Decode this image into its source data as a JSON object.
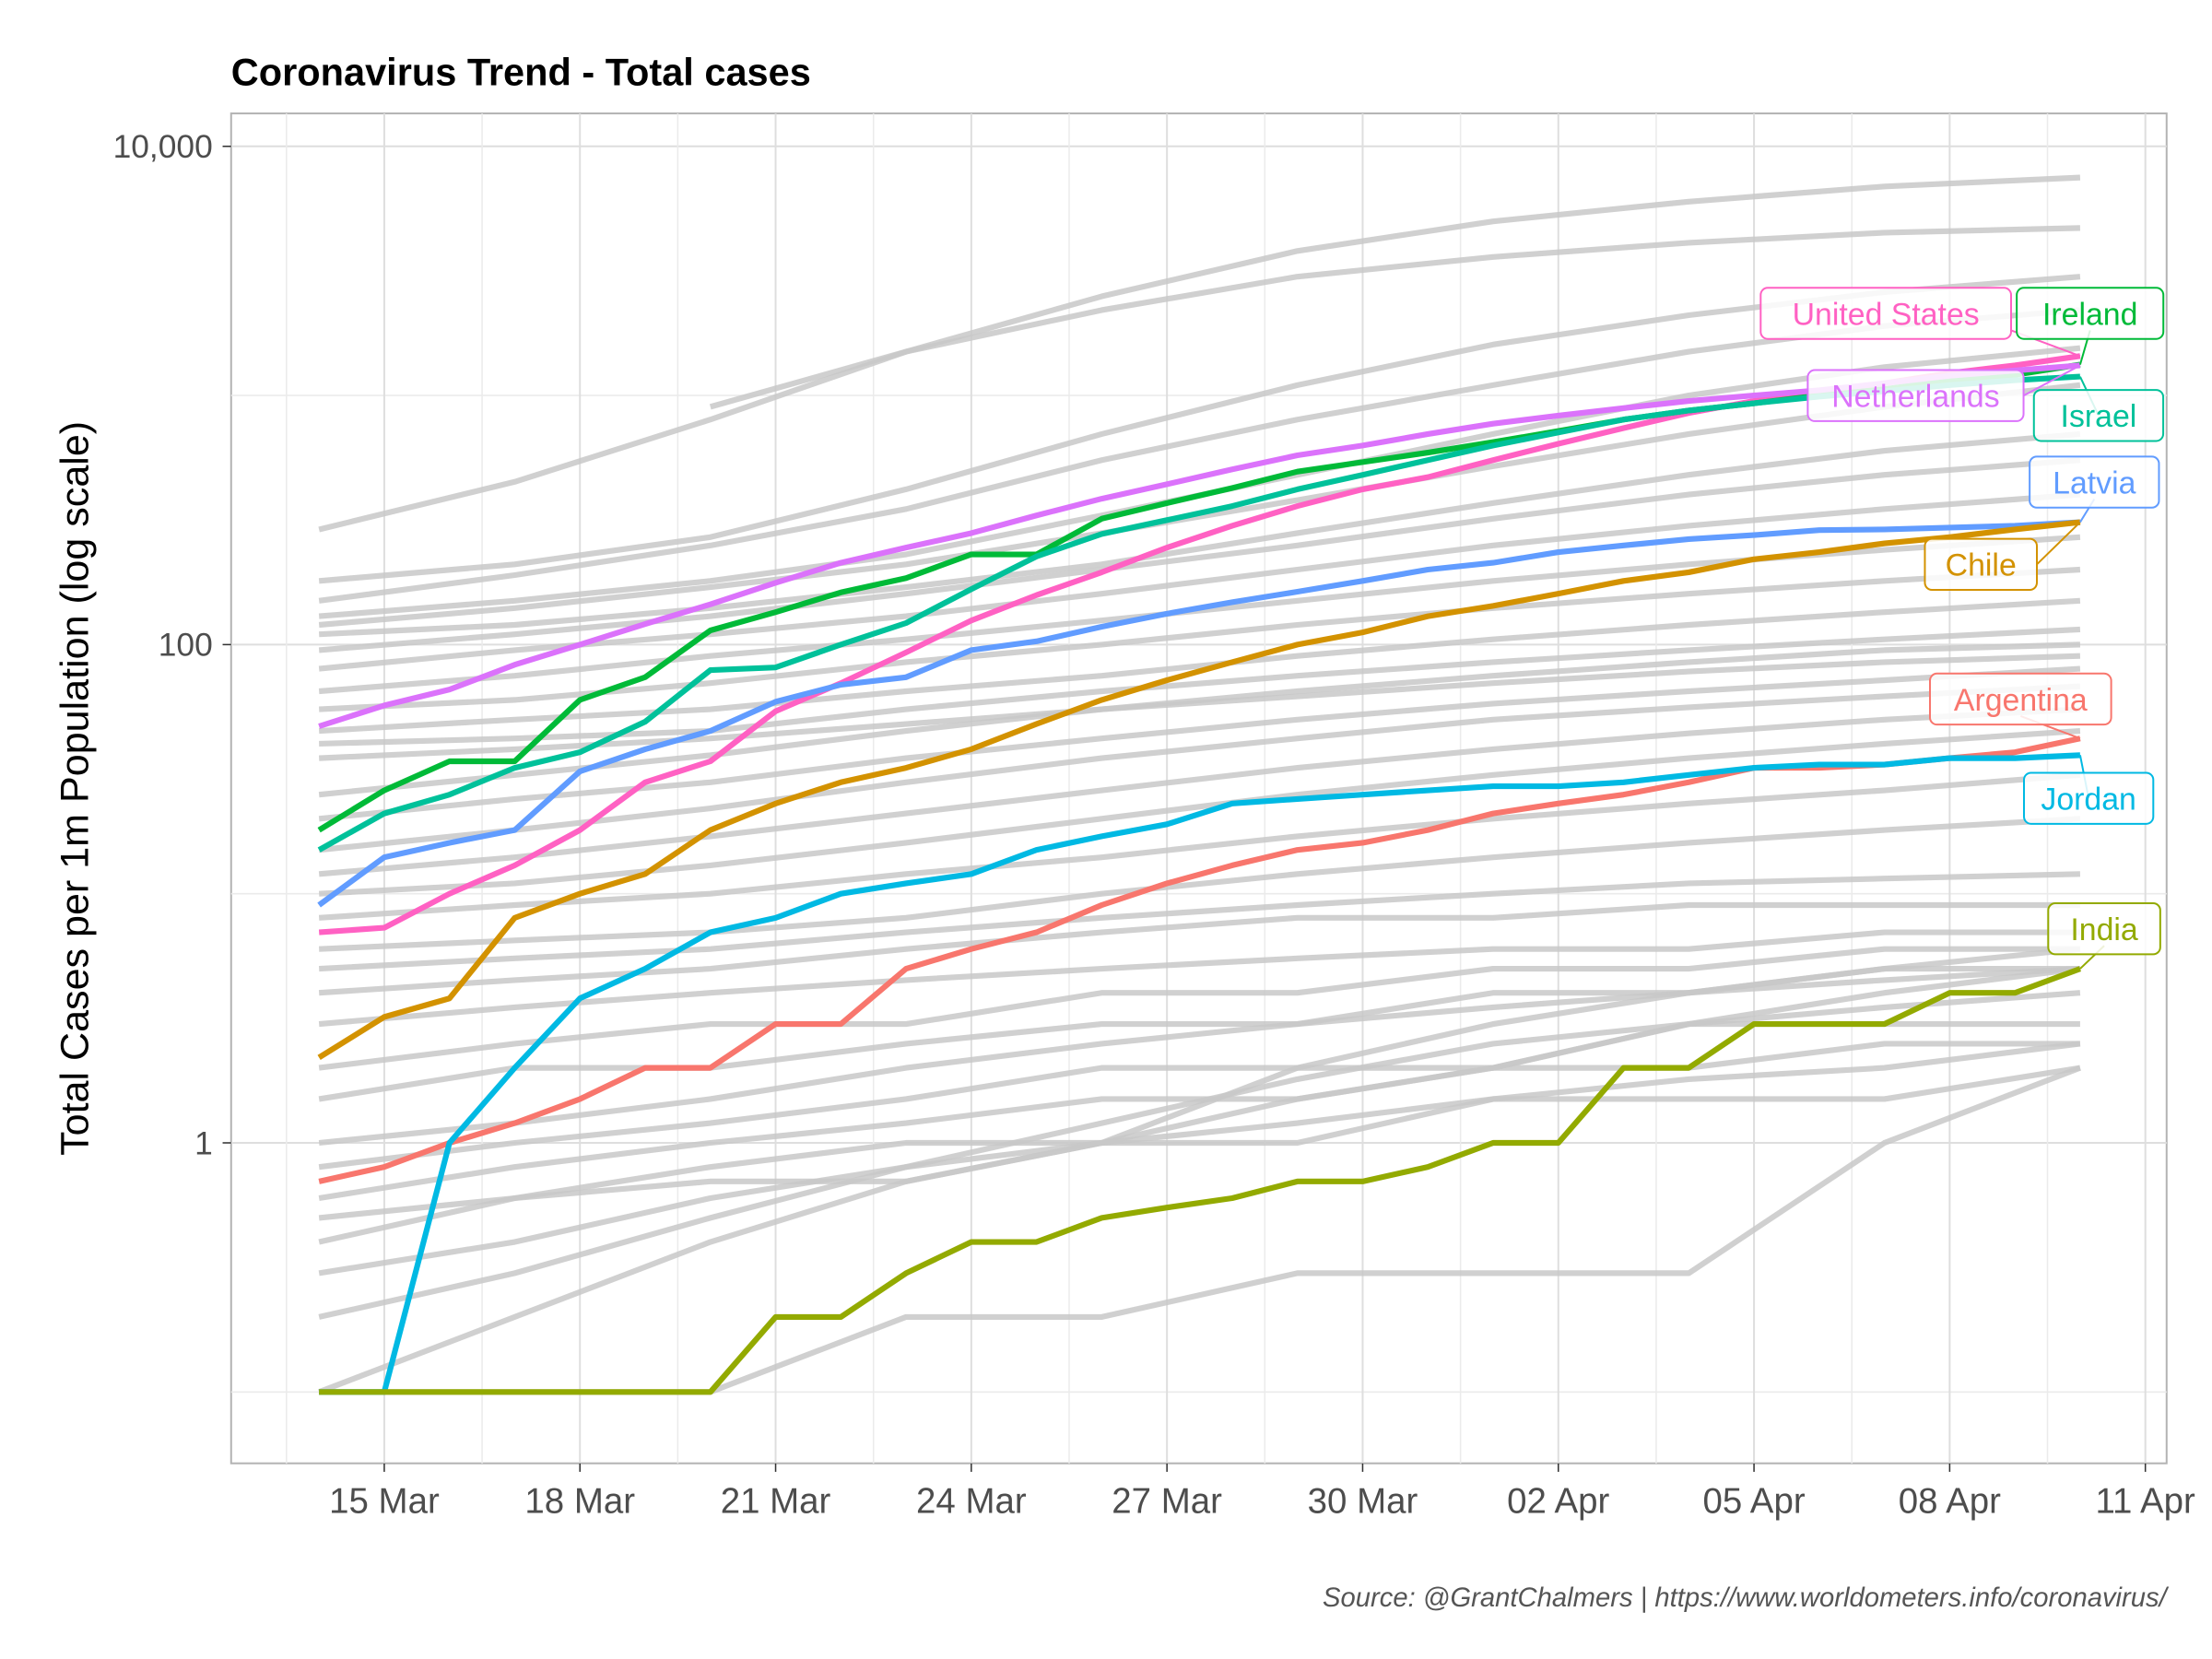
{
  "chart_data": {
    "type": "line",
    "title": "Coronavirus Trend - Total cases",
    "ylabel": "Total Cases per 1m Population (log scale)",
    "xlabel": "",
    "caption": "Source: @GrantChalmers | https://www.worldometers.info/coronavirus/",
    "y_scale": "log10",
    "ylim": [
      0.07,
      14000
    ],
    "y_ticks": [
      {
        "value": 10000,
        "label": "10,000"
      },
      {
        "value": 100,
        "label": "100"
      },
      {
        "value": 1,
        "label": "1"
      }
    ],
    "x_ticks": [
      "15 Mar",
      "18 Mar",
      "21 Mar",
      "24 Mar",
      "27 Mar",
      "30 Mar",
      "02 Apr",
      "05 Apr",
      "08 Apr",
      "11 Apr"
    ],
    "x_start": "14 Mar",
    "x_end": "10 Apr",
    "grid": true,
    "legend": "direct labels at line ends",
    "highlighted_series": [
      {
        "name": "United States",
        "color": "#FF61C3",
        "values": [
          7,
          7.3,
          10,
          13,
          18,
          28,
          34,
          54,
          70,
          93,
          125,
          158,
          195,
          245,
          300,
          360,
          420,
          470,
          550,
          640,
          740,
          850,
          950,
          1020,
          1120,
          1230,
          1320,
          1440
        ]
      },
      {
        "name": "Ireland",
        "color": "#00BA38",
        "values": [
          18,
          26,
          34,
          34,
          60,
          74,
          114,
          135,
          162,
          185,
          230,
          230,
          320,
          370,
          425,
          495,
          540,
          590,
          650,
          720,
          800,
          870,
          930,
          1000,
          1060,
          1150,
          1210,
          1330
        ]
      },
      {
        "name": "Netherlands",
        "color": "#DB72FB",
        "values": [
          47,
          57,
          66,
          83,
          100,
          121,
          145,
          177,
          213,
          245,
          280,
          330,
          385,
          440,
          505,
          575,
          630,
          700,
          770,
          830,
          890,
          950,
          1000,
          1050,
          1120,
          1200,
          1260,
          1320
        ]
      },
      {
        "name": "Israel",
        "color": "#00C19A",
        "values": [
          15,
          21,
          25,
          32,
          37,
          49,
          79,
          81,
          100,
          122,
          167,
          226,
          278,
          316,
          360,
          420,
          480,
          550,
          630,
          710,
          800,
          870,
          930,
          990,
          1040,
          1100,
          1150,
          1190
        ]
      },
      {
        "name": "Latvia",
        "color": "#619CFF",
        "values": [
          9,
          14,
          16,
          18,
          31,
          38,
          45,
          59,
          69,
          74,
          95,
          103,
          118,
          133,
          148,
          163,
          180,
          200,
          213,
          235,
          250,
          265,
          275,
          288,
          290,
          295,
          300,
          310
        ]
      },
      {
        "name": "Chile",
        "color": "#D39200",
        "values": [
          2.2,
          3.2,
          3.8,
          8,
          10,
          12,
          18,
          23,
          28,
          32,
          38,
          48,
          60,
          72,
          85,
          100,
          112,
          130,
          143,
          160,
          180,
          195,
          220,
          235,
          255,
          270,
          290,
          310
        ]
      },
      {
        "name": "Argentina",
        "color": "#F8766D",
        "values": [
          0.7,
          0.8,
          1,
          1.2,
          1.5,
          2,
          2,
          3,
          3,
          5,
          6,
          7,
          9,
          11,
          13,
          15,
          16,
          18,
          21,
          23,
          25,
          28,
          32,
          32,
          33,
          35,
          37,
          42
        ]
      },
      {
        "name": "Jordan",
        "color": "#00B9E3",
        "values": [
          0.1,
          0.1,
          1,
          2,
          3.8,
          5,
          7,
          8,
          10,
          11,
          12,
          15,
          17,
          19,
          23,
          24,
          25,
          26,
          27,
          27,
          28,
          30,
          32,
          33,
          33,
          35,
          35,
          36
        ]
      },
      {
        "name": "India",
        "color": "#93AA00",
        "values": [
          0.1,
          0.1,
          0.1,
          0.1,
          0.1,
          0.1,
          0.1,
          0.2,
          0.2,
          0.3,
          0.4,
          0.4,
          0.5,
          0.55,
          0.6,
          0.7,
          0.7,
          0.8,
          1,
          1,
          2,
          2,
          3,
          3,
          3,
          4,
          4,
          5
        ]
      }
    ],
    "background_series_dates": [
      "14 Mar",
      "17 Mar",
      "20 Mar",
      "23 Mar",
      "26 Mar",
      "29 Mar",
      "01 Apr",
      "04 Apr",
      "07 Apr",
      "10 Apr"
    ],
    "background_series_color": "#C8C8C8",
    "background_series": [
      [
        290,
        450,
        800,
        1500,
        2500,
        3800,
        5000,
        6000,
        6900,
        7500
      ],
      [
        null,
        null,
        900,
        1500,
        2200,
        3000,
        3600,
        4100,
        4500,
        4700
      ],
      [
        180,
        210,
        270,
        420,
        700,
        1100,
        1600,
        2100,
        2600,
        3000
      ],
      [
        150,
        190,
        250,
        350,
        550,
        800,
        1100,
        1500,
        1900,
        2200
      ],
      [
        130,
        150,
        180,
        230,
        330,
        480,
        700,
        1000,
        1300,
        1550
      ],
      [
        120,
        140,
        170,
        210,
        280,
        380,
        520,
        700,
        900,
        1100
      ],
      [
        110,
        120,
        140,
        170,
        210,
        280,
        370,
        480,
        600,
        700
      ],
      [
        95,
        110,
        130,
        160,
        200,
        250,
        320,
        400,
        480,
        550
      ],
      [
        80,
        95,
        110,
        130,
        160,
        200,
        250,
        300,
        350,
        400
      ],
      [
        65,
        75,
        90,
        105,
        125,
        150,
        180,
        210,
        240,
        270
      ],
      [
        55,
        60,
        70,
        85,
        100,
        120,
        140,
        160,
        180,
        200
      ],
      [
        45,
        50,
        55,
        65,
        75,
        90,
        105,
        120,
        135,
        150
      ],
      [
        40,
        42,
        45,
        55,
        65,
        75,
        85,
        95,
        105,
        115
      ],
      [
        35,
        38,
        42,
        48,
        55,
        62,
        70,
        78,
        85,
        90
      ],
      [
        25,
        30,
        36,
        45,
        55,
        65,
        75,
        85,
        95,
        100
      ],
      [
        20,
        24,
        28,
        35,
        42,
        50,
        58,
        65,
        72,
        80
      ],
      [
        15,
        18,
        22,
        28,
        35,
        42,
        50,
        56,
        62,
        68
      ],
      [
        12,
        14,
        17,
        21,
        26,
        32,
        38,
        44,
        50,
        55
      ],
      [
        10,
        11,
        13,
        16,
        20,
        25,
        30,
        35,
        40,
        45
      ],
      [
        8,
        9,
        10,
        12,
        14,
        17,
        20,
        23,
        26,
        30
      ],
      [
        6,
        6.5,
        7,
        8,
        10,
        12,
        14,
        16,
        18,
        20
      ],
      [
        5,
        5.5,
        6,
        7,
        8,
        9,
        10,
        11,
        11.5,
        12
      ],
      [
        4,
        4.5,
        5,
        6,
        7,
        8,
        8,
        9,
        9,
        9
      ],
      [
        3,
        3.5,
        4,
        4.5,
        5,
        5.5,
        6,
        6,
        7,
        7
      ],
      [
        2,
        2.5,
        3,
        3,
        4,
        4,
        5,
        5,
        6,
        6
      ],
      [
        1.5,
        2,
        2,
        2.5,
        3,
        3,
        4,
        4,
        5,
        5
      ],
      [
        1,
        1.2,
        1.5,
        2,
        2.5,
        3,
        3.5,
        4,
        4.5,
        5
      ],
      [
        0.8,
        1,
        1.2,
        1.5,
        2,
        2,
        2,
        3,
        3,
        3
      ],
      [
        0.6,
        0.8,
        1,
        1.2,
        1.5,
        1.5,
        2,
        2,
        2.5,
        2.5
      ],
      [
        0.4,
        0.6,
        0.8,
        1,
        1,
        1,
        1.5,
        1.5,
        1.5,
        2
      ],
      [
        0.3,
        0.4,
        0.6,
        0.8,
        1,
        1.2,
        1.5,
        1.8,
        2,
        2.5
      ],
      [
        0.1,
        0.1,
        0.1,
        0.2,
        0.2,
        0.3,
        0.3,
        0.3,
        1,
        2
      ],
      [
        0.2,
        0.3,
        0.5,
        0.8,
        1.2,
        1.8,
        2.5,
        3,
        3.5,
        4
      ],
      [
        0.1,
        0.2,
        0.4,
        0.7,
        1,
        1.5,
        2,
        3,
        4,
        5
      ],
      [
        0.5,
        0.6,
        0.7,
        0.7,
        1,
        2,
        3,
        4,
        5,
        6
      ]
    ]
  }
}
